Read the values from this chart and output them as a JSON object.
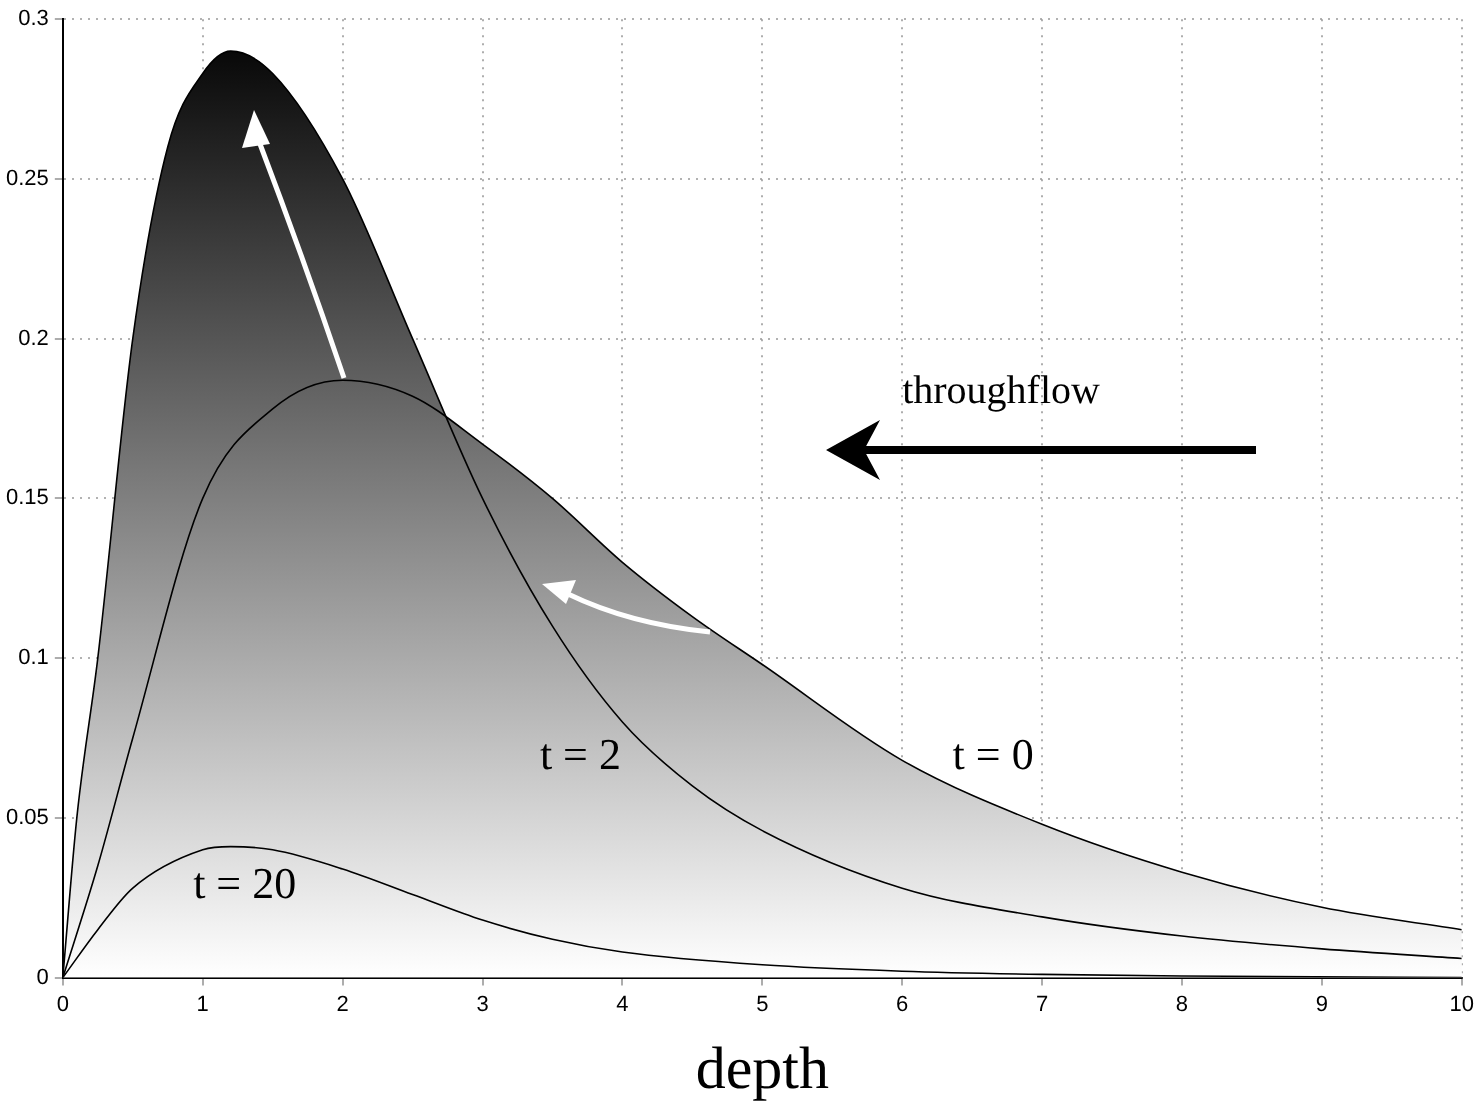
{
  "chart_data": {
    "type": "line",
    "xlabel": "depth",
    "xlim": [
      0,
      10
    ],
    "xticks": [
      0,
      1,
      2,
      3,
      4,
      5,
      6,
      7,
      8,
      9,
      10
    ],
    "ylim": [
      0,
      0.3
    ],
    "yticks": [
      0,
      0.05,
      0.1,
      0.15,
      0.2,
      0.25,
      0.3
    ],
    "grid": true,
    "marker": "none",
    "line_style": "solid",
    "series": [
      {
        "type": "area",
        "name": "t = 2",
        "color": "#000000",
        "x": [
          0,
          0.1,
          0.25,
          0.5,
          0.75,
          1,
          1.2,
          1.5,
          2,
          2.5,
          3,
          3.5,
          4,
          4.5,
          5,
          6,
          7,
          8,
          9,
          10
        ],
        "values": [
          0,
          0.05,
          0.1,
          0.2,
          0.26,
          0.283,
          0.29,
          0.283,
          0.25,
          0.2,
          0.15,
          0.11,
          0.08,
          0.06,
          0.046,
          0.028,
          0.019,
          0.013,
          0.009,
          0.006
        ]
      },
      {
        "type": "area",
        "name": "t = 0",
        "color": "#000000",
        "x": [
          0,
          0.25,
          0.5,
          1,
          1.5,
          2,
          2.5,
          3,
          3.5,
          4,
          4.5,
          5,
          6,
          7,
          8,
          9,
          10
        ],
        "values": [
          0,
          0.035,
          0.075,
          0.15,
          0.178,
          0.187,
          0.182,
          0.167,
          0.15,
          0.13,
          0.113,
          0.098,
          0.068,
          0.048,
          0.033,
          0.022,
          0.015
        ]
      },
      {
        "type": "line",
        "name": "t = 20",
        "color": "#000000",
        "x": [
          0,
          0.25,
          0.5,
          1,
          1.2,
          1.5,
          2,
          2.5,
          3,
          3.5,
          4,
          5,
          6,
          7,
          8,
          10
        ],
        "values": [
          0,
          0.015,
          0.028,
          0.04,
          0.041,
          0.04,
          0.034,
          0.026,
          0.018,
          0.012,
          0.008,
          0.004,
          0.002,
          0.001,
          0.0005,
          0
        ]
      }
    ],
    "annotations": [
      "throughflow"
    ]
  }
}
